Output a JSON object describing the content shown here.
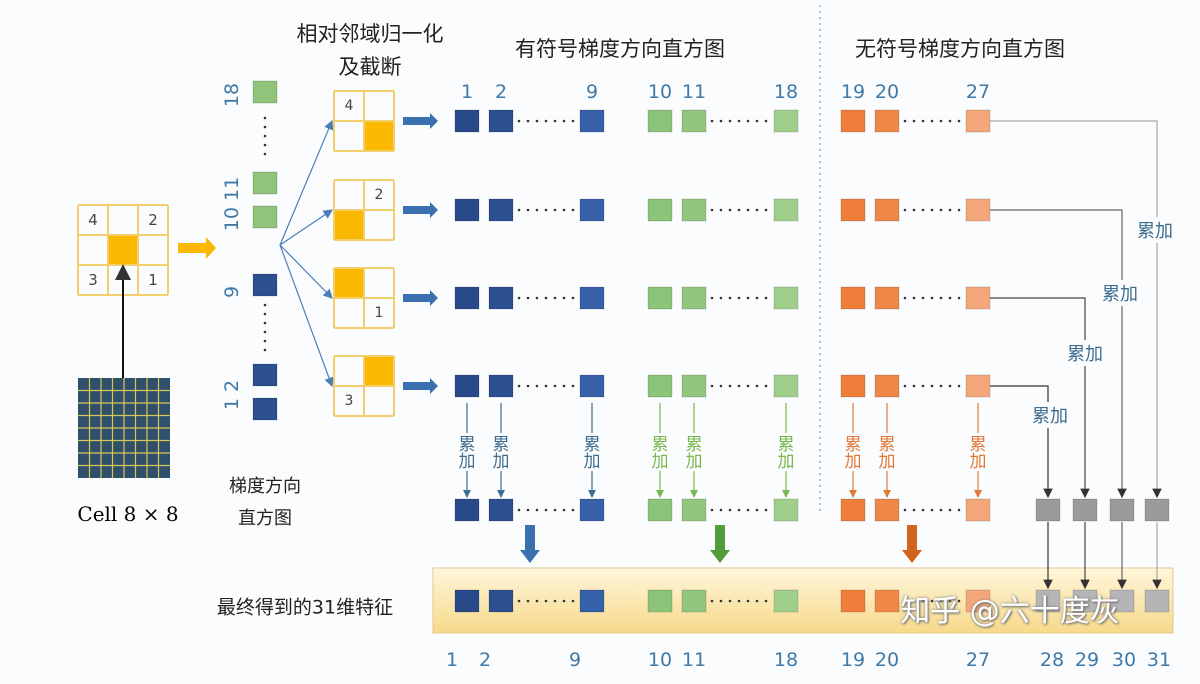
{
  "titles": {
    "normalize_line1": "相对邻域归一化",
    "normalize_line2": "及截断",
    "signed": "有符号梯度方向直方图",
    "unsigned": "无符号梯度方向直方图"
  },
  "left": {
    "cell_label": "Cell 8 × 8",
    "cell_numbers": [
      "4",
      "2",
      "3",
      "1"
    ],
    "hist_label_line1": "梯度方向",
    "hist_label_line2": "直方图",
    "hist_numbers": [
      "18",
      "10 11",
      "9",
      "1 2"
    ]
  },
  "grid_numbers": [
    "4",
    "2",
    "1",
    "3"
  ],
  "column_labels": [
    "1",
    "2",
    "9",
    "10",
    "11",
    "18",
    "19",
    "20",
    "27"
  ],
  "bottom_labels": [
    "1",
    "2",
    "9",
    "10",
    "11",
    "18",
    "19",
    "20",
    "27",
    "28",
    "29",
    "30",
    "31"
  ],
  "accumulate_label": "累加",
  "right_accumulate_labels": [
    "累加",
    "累加",
    "累加",
    "累加"
  ],
  "final_label": "最终得到的31维特征",
  "watermark": "知乎 @六十度灰",
  "colors": {
    "blue": "#2b4f8f",
    "green": "#8fc47a",
    "orange": "#ef8540",
    "gray": "#a9a9a9",
    "yellow": "#fbb800",
    "label_blue": "#3f79a8"
  }
}
